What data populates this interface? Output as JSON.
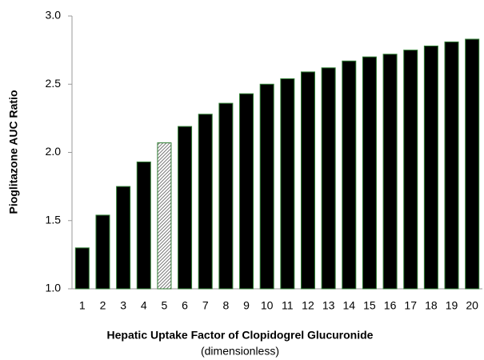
{
  "chart_data": {
    "type": "bar",
    "x_label": "Hepatic Uptake Factor of Clopidogrel Glucuronide",
    "x_sublabel": "(dimensionless)",
    "y_label": "Pioglitazone AUC Ratio",
    "categories": [
      "1",
      "2",
      "3",
      "4",
      "5",
      "6",
      "7",
      "8",
      "9",
      "10",
      "11",
      "12",
      "13",
      "14",
      "15",
      "16",
      "17",
      "18",
      "19",
      "20"
    ],
    "values": [
      1.3,
      1.54,
      1.75,
      1.93,
      2.07,
      2.19,
      2.28,
      2.36,
      2.43,
      2.5,
      2.54,
      2.59,
      2.62,
      2.67,
      2.7,
      2.72,
      2.75,
      2.78,
      2.81,
      2.83
    ],
    "colors": [
      "#000000",
      "#000000",
      "#000000",
      "#000000",
      "hatch",
      "#000000",
      "#000000",
      "#000000",
      "#000000",
      "#000000",
      "#000000",
      "#000000",
      "#000000",
      "#000000",
      "#000000",
      "#000000",
      "#000000",
      "#000000",
      "#000000",
      "#000000"
    ],
    "edge_color": "#2e7d32",
    "ylim": [
      1.0,
      3.0
    ],
    "yticks": [
      {
        "value": 1.0,
        "label": "1.0"
      },
      {
        "value": 1.5,
        "label": "1.5"
      },
      {
        "value": 2.0,
        "label": "2.0"
      },
      {
        "value": 2.5,
        "label": "2.5"
      },
      {
        "value": 3.0,
        "label": "3.0"
      }
    ],
    "grid": false
  }
}
